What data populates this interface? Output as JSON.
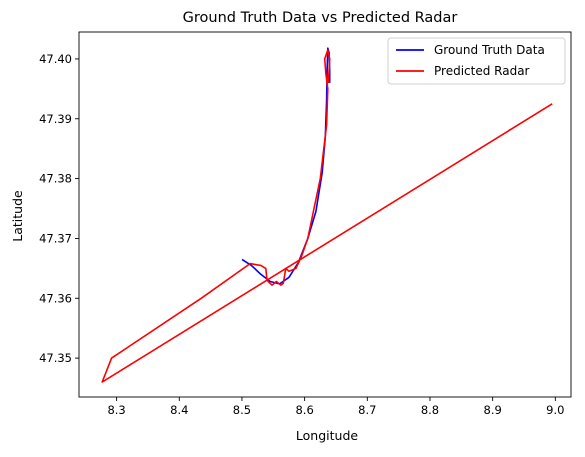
{
  "chart_data": {
    "type": "line",
    "title": "Ground Truth Data vs Predicted Radar",
    "xlabel": "Longitude",
    "ylabel": "Latitude",
    "xlim": [
      8.24,
      9.025
    ],
    "ylim": [
      47.3435,
      47.4045
    ],
    "xticks": [
      "8.3",
      "8.4",
      "8.5",
      "8.6",
      "8.7",
      "8.8",
      "8.9",
      "9.0"
    ],
    "xtick_values": [
      8.3,
      8.4,
      8.5,
      8.6,
      8.7,
      8.8,
      8.9,
      9.0
    ],
    "yticks": [
      "47.35",
      "47.36",
      "47.37",
      "47.38",
      "47.39",
      "47.40"
    ],
    "ytick_values": [
      47.35,
      47.36,
      47.37,
      47.38,
      47.39,
      47.4
    ],
    "grid": false,
    "legend_position": "top-right",
    "series": [
      {
        "name": "Ground Truth Data",
        "color": "#0000ff",
        "points": [
          [
            8.5,
            47.3665
          ],
          [
            8.515,
            47.3655
          ],
          [
            8.53,
            47.364
          ],
          [
            8.545,
            47.3628
          ],
          [
            8.56,
            47.3624
          ],
          [
            8.575,
            47.3635
          ],
          [
            8.59,
            47.366
          ],
          [
            8.605,
            47.37
          ],
          [
            8.618,
            47.3745
          ],
          [
            8.628,
            47.381
          ],
          [
            8.633,
            47.387
          ],
          [
            8.635,
            47.393
          ],
          [
            8.636,
            47.3985
          ],
          [
            8.637,
            47.4018
          ],
          [
            8.639,
            47.401
          ],
          [
            8.64,
            47.398
          ],
          [
            8.64,
            47.396
          ]
        ]
      },
      {
        "name": "Predicted Radar",
        "color": "#ff0000",
        "points": [
          [
            8.638,
            47.396
          ],
          [
            8.64,
            47.4
          ],
          [
            8.637,
            47.4015
          ],
          [
            8.632,
            47.4
          ],
          [
            8.634,
            47.3975
          ],
          [
            8.637,
            47.395
          ],
          [
            8.635,
            47.389
          ],
          [
            8.625,
            47.38
          ],
          [
            8.615,
            47.375
          ],
          [
            8.605,
            47.37
          ],
          [
            8.595,
            47.367
          ],
          [
            8.586,
            47.365
          ],
          [
            8.575,
            47.3645
          ],
          [
            8.57,
            47.365
          ],
          [
            8.566,
            47.3625
          ],
          [
            8.562,
            47.3622
          ],
          [
            8.555,
            47.3628
          ],
          [
            8.548,
            47.3622
          ],
          [
            8.54,
            47.363
          ],
          [
            8.538,
            47.365
          ],
          [
            8.53,
            47.3655
          ],
          [
            8.513,
            47.3658
          ],
          [
            8.435,
            47.36
          ],
          [
            8.292,
            47.35
          ],
          [
            8.277,
            47.346
          ],
          [
            8.995,
            47.3925
          ]
        ]
      }
    ]
  }
}
